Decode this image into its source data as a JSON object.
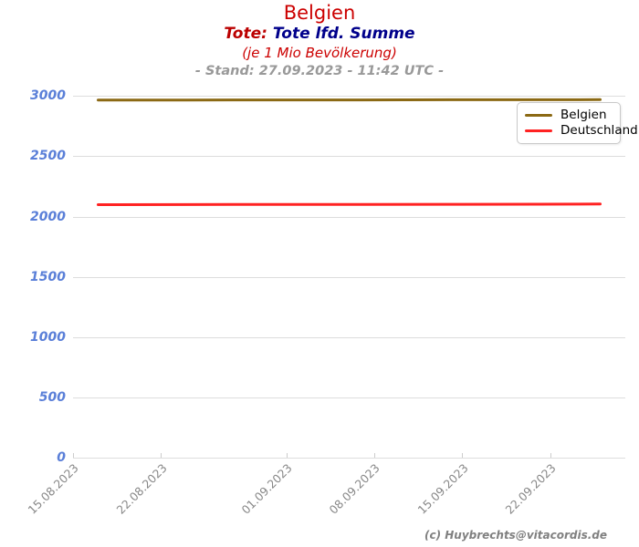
{
  "header": {
    "title": "Belgien",
    "subtitle_prefix": "Tote:",
    "subtitle_main": "Tote lfd. Summe",
    "subtitle_note": "(je 1 Mio Bevölkerung)",
    "stand_line": "- Stand: 27.09.2023 - 11:42 UTC -"
  },
  "footer": {
    "copyright": "(c) Huybrechts@vitacordis.de"
  },
  "colors": {
    "title_red": "#cc0000",
    "subtitle_red": "#bb0000",
    "subtitle_navy": "#00008b",
    "stand_gray": "#999999",
    "y_label_blue": "#5a7fd8",
    "x_label_gray": "#888888",
    "gridline_gray": "#dddddd",
    "copyright_gray": "#808080",
    "belgien_line": "#8b6914",
    "deutschland_line": "#ff2222"
  },
  "chart_data": {
    "type": "line",
    "title": "Belgien",
    "subtitle": "Tote: Tote lfd. Summe (je 1 Mio Bevölkerung)",
    "annotation": "- Stand: 27.09.2023 - 11:42 UTC -",
    "xlabel": "",
    "ylabel": "",
    "ylim": [
      0,
      3000
    ],
    "grid": true,
    "legend_position": "upper-right",
    "yticks": [
      "3000",
      "2500",
      "2000",
      "1500",
      "1000",
      "500",
      "0"
    ],
    "ytick_values": [
      3000,
      2500,
      2000,
      1500,
      1000,
      500,
      0
    ],
    "xticks": [
      "15.08.2023",
      "22.08.2023",
      "01.09.2023",
      "08.09.2023",
      "15.09.2023",
      "22.09.2023"
    ],
    "series": [
      {
        "name": "Belgien",
        "color": "#8b6914",
        "points": [
          [
            "17.08.2023",
            2966
          ],
          [
            "24.08.2023",
            2966
          ],
          [
            "31.08.2023",
            2967
          ],
          [
            "07.09.2023",
            2967
          ],
          [
            "14.09.2023",
            2968
          ],
          [
            "21.09.2023",
            2968
          ],
          [
            "26.09.2023",
            2969
          ]
        ]
      },
      {
        "name": "Deutschland",
        "color": "#ff2222",
        "points": [
          [
            "17.08.2023",
            2098
          ],
          [
            "24.08.2023",
            2099
          ],
          [
            "31.08.2023",
            2100
          ],
          [
            "07.09.2023",
            2100
          ],
          [
            "14.09.2023",
            2101
          ],
          [
            "21.09.2023",
            2102
          ],
          [
            "26.09.2023",
            2103
          ]
        ]
      }
    ]
  }
}
